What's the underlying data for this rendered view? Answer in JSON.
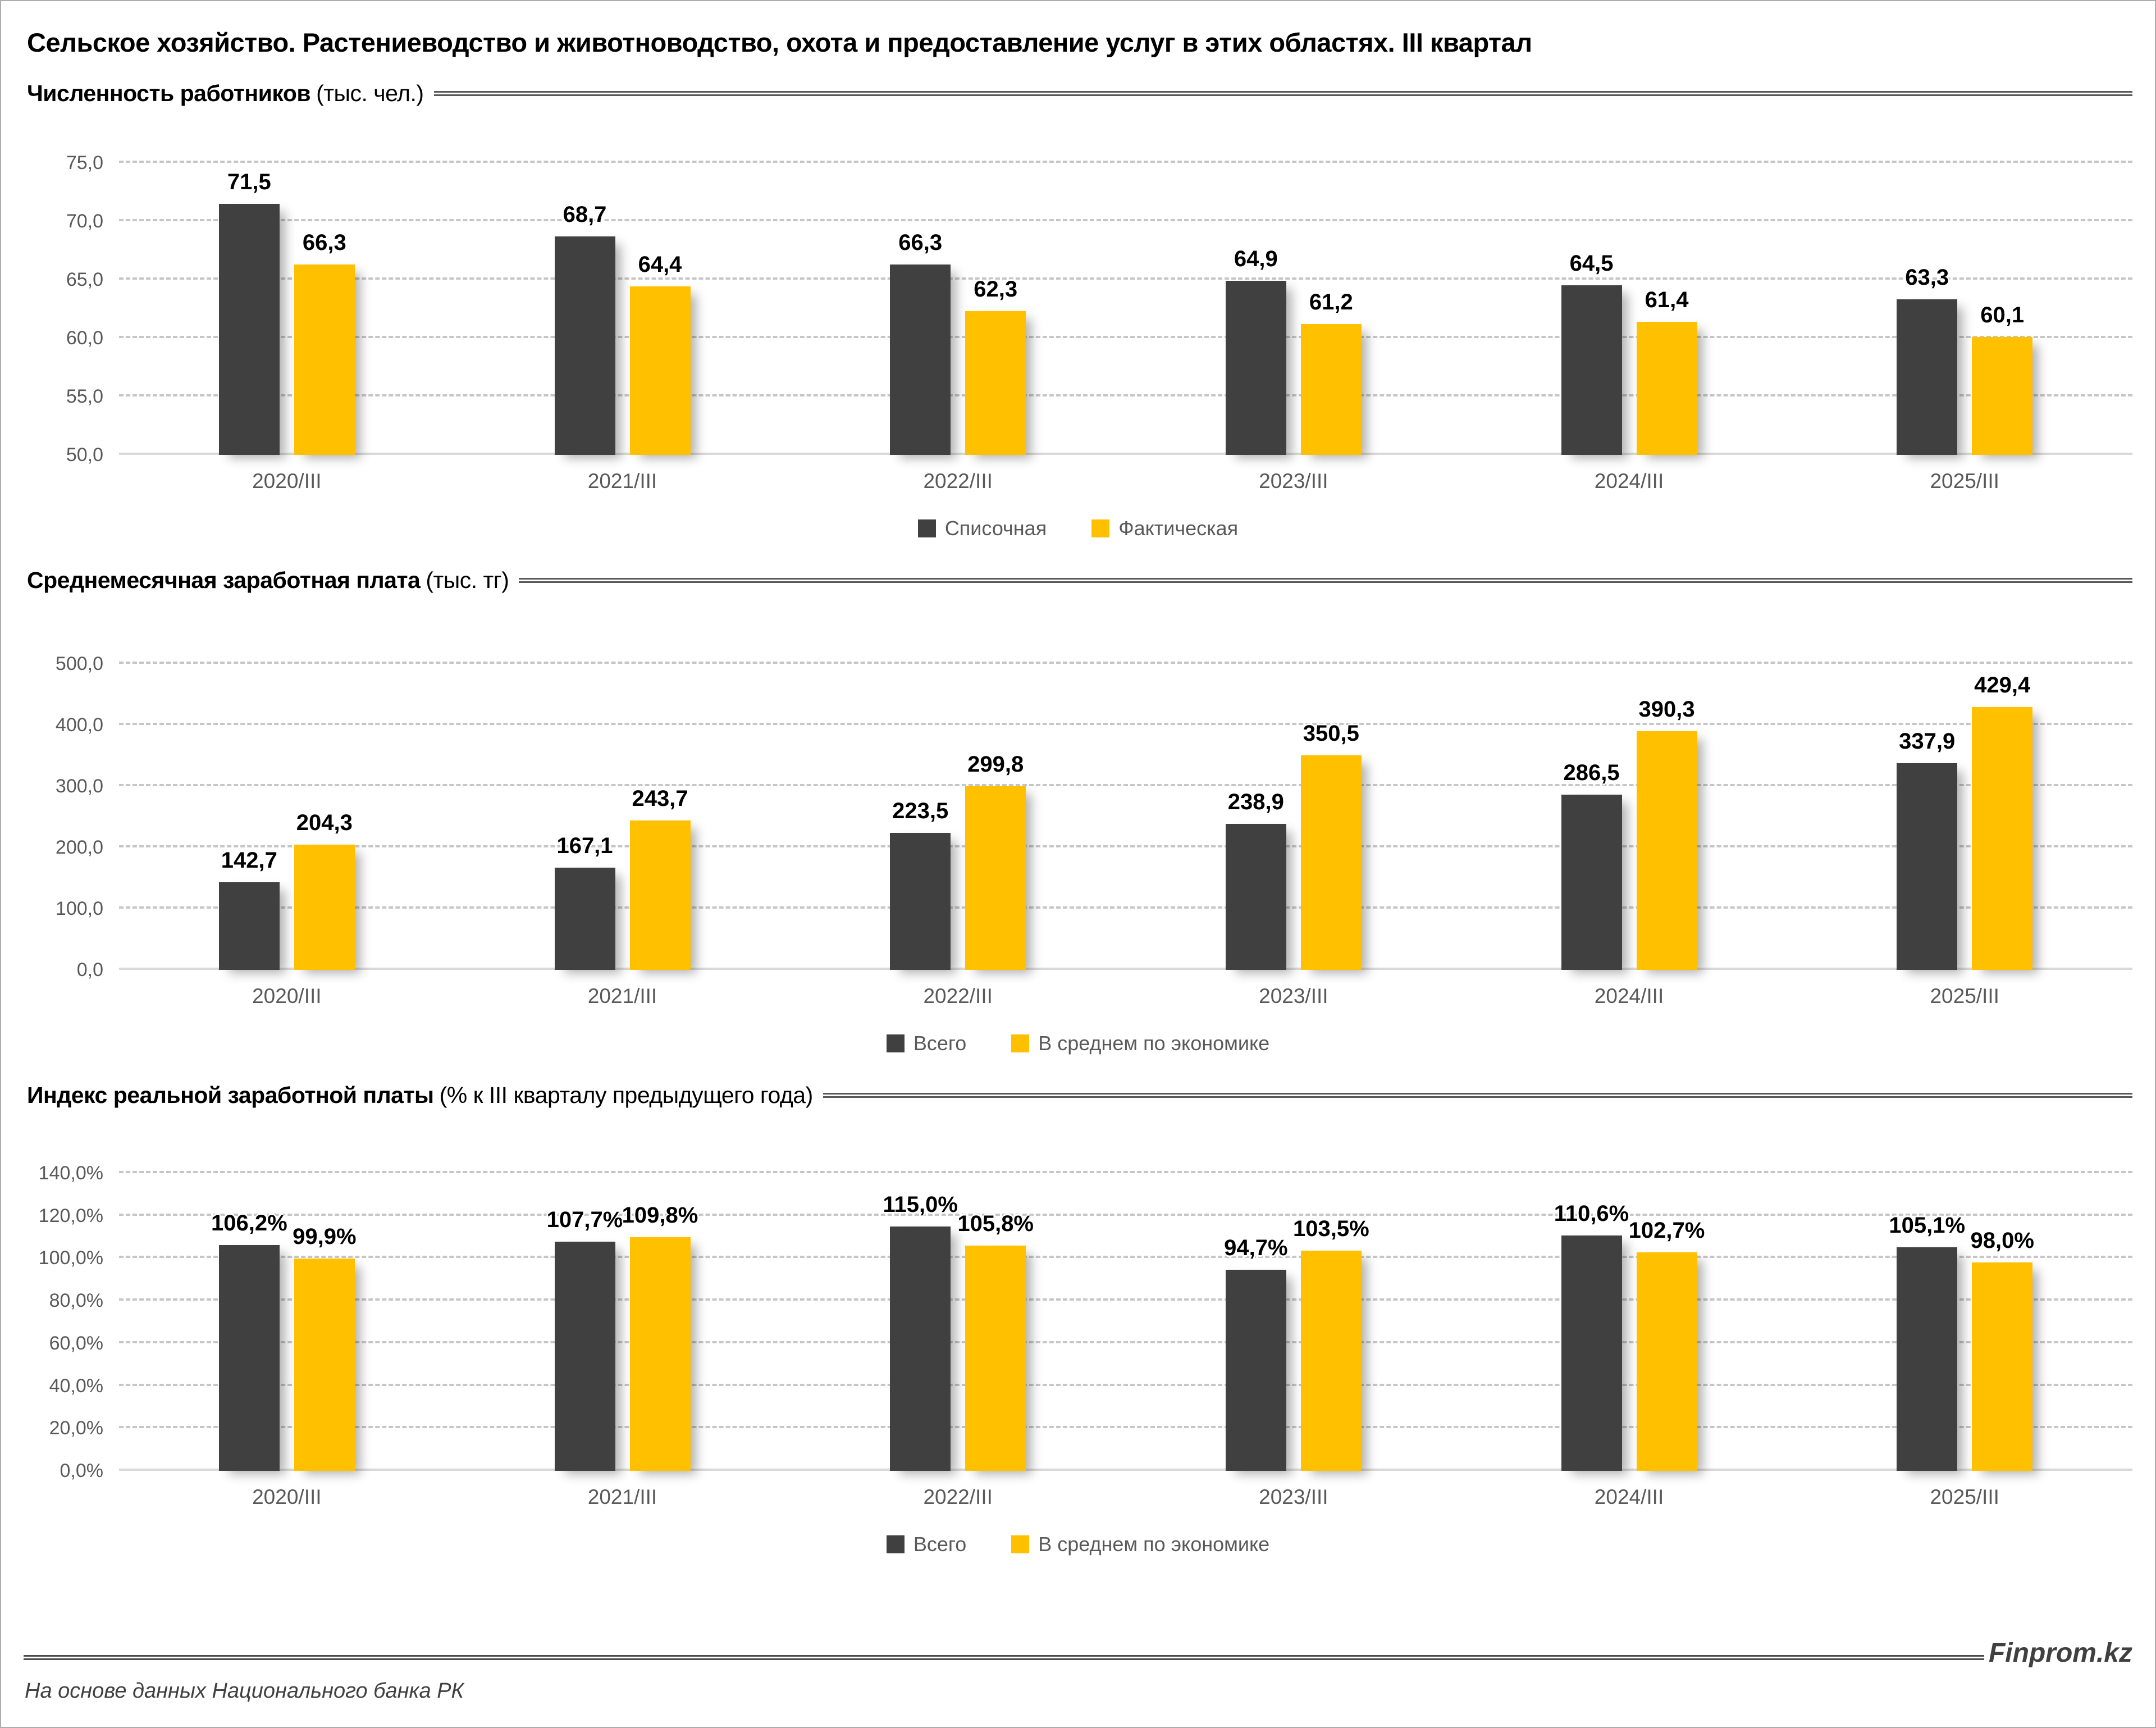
{
  "page": {
    "title": "Сельское хозяйство. Растениеводство и животноводство, охота и предоставление услуг в этих областях. III квартал",
    "source_note": "На основе данных Национального банка РК",
    "brand": "Finprom.kz"
  },
  "colors": {
    "series1": "#404040",
    "series2": "#FFC000",
    "axis_text": "#595959",
    "grid": "#c6c6c6",
    "value_label": "#000000"
  },
  "chart_data": [
    {
      "type": "bar",
      "title": "Численность работников",
      "unit": "(тыс. чел.)",
      "categories": [
        "2020/III",
        "2021/III",
        "2022/III",
        "2023/III",
        "2024/III",
        "2025/III"
      ],
      "series": [
        {
          "key": "payroll",
          "name": "Списочная",
          "color_key": "series1",
          "values": [
            71.5,
            68.7,
            66.3,
            64.9,
            64.5,
            63.3
          ],
          "labels": [
            "71,5",
            "68,7",
            "66,3",
            "64,9",
            "64,5",
            "63,3"
          ]
        },
        {
          "key": "actual",
          "name": "Фактическая",
          "color_key": "series2",
          "values": [
            66.3,
            64.4,
            62.3,
            61.2,
            61.4,
            60.1
          ],
          "labels": [
            "66,3",
            "64,4",
            "62,3",
            "61,2",
            "61,4",
            "60,1"
          ]
        }
      ],
      "ylim": [
        50,
        75
      ],
      "yticks": [
        "75,0",
        "70,0",
        "65,0",
        "60,0",
        "55,0",
        "50,0"
      ],
      "grid": true,
      "legend_position": "bottom"
    },
    {
      "type": "bar",
      "title": "Среднемесячная заработная плата",
      "unit": "(тыс. тг)",
      "categories": [
        "2020/III",
        "2021/III",
        "2022/III",
        "2023/III",
        "2024/III",
        "2025/III"
      ],
      "series": [
        {
          "key": "total",
          "name": "Всего",
          "color_key": "series1",
          "values": [
            142.7,
            167.1,
            223.5,
            238.9,
            286.5,
            337.9
          ],
          "labels": [
            "142,7",
            "167,1",
            "223,5",
            "238,9",
            "286,5",
            "337,9"
          ]
        },
        {
          "key": "economy-average",
          "name": "В среднем по экономике",
          "color_key": "series2",
          "values": [
            204.3,
            243.7,
            299.8,
            350.5,
            390.3,
            429.4
          ],
          "labels": [
            "204,3",
            "243,7",
            "299,8",
            "350,5",
            "390,3",
            "429,4"
          ]
        }
      ],
      "ylim": [
        0,
        500
      ],
      "yticks": [
        "500,0",
        "400,0",
        "300,0",
        "200,0",
        "100,0",
        "0,0"
      ],
      "grid": true,
      "legend_position": "bottom"
    },
    {
      "type": "bar",
      "title": "Индекс реальной заработной платы",
      "unit": "(% к III кварталу предыдущего года)",
      "categories": [
        "2020/III",
        "2021/III",
        "2022/III",
        "2023/III",
        "2024/III",
        "2025/III"
      ],
      "series": [
        {
          "key": "total",
          "name": "Всего",
          "color_key": "series1",
          "values": [
            106.2,
            107.7,
            115.0,
            94.7,
            110.6,
            105.1
          ],
          "labels": [
            "106,2%",
            "107,7%",
            "115,0%",
            "94,7%",
            "110,6%",
            "105,1%"
          ]
        },
        {
          "key": "economy-average",
          "name": "В среднем по экономике",
          "color_key": "series2",
          "values": [
            99.9,
            109.8,
            105.8,
            103.5,
            102.7,
            98.0
          ],
          "labels": [
            "99,9%",
            "109,8%",
            "105,8%",
            "103,5%",
            "102,7%",
            "98,0%"
          ]
        }
      ],
      "ylim": [
        0,
        140
      ],
      "yticks": [
        "140,0%",
        "120,0%",
        "100,0%",
        "80,0%",
        "60,0%",
        "40,0%",
        "20,0%",
        "0,0%"
      ],
      "grid": true,
      "legend_position": "bottom"
    }
  ]
}
